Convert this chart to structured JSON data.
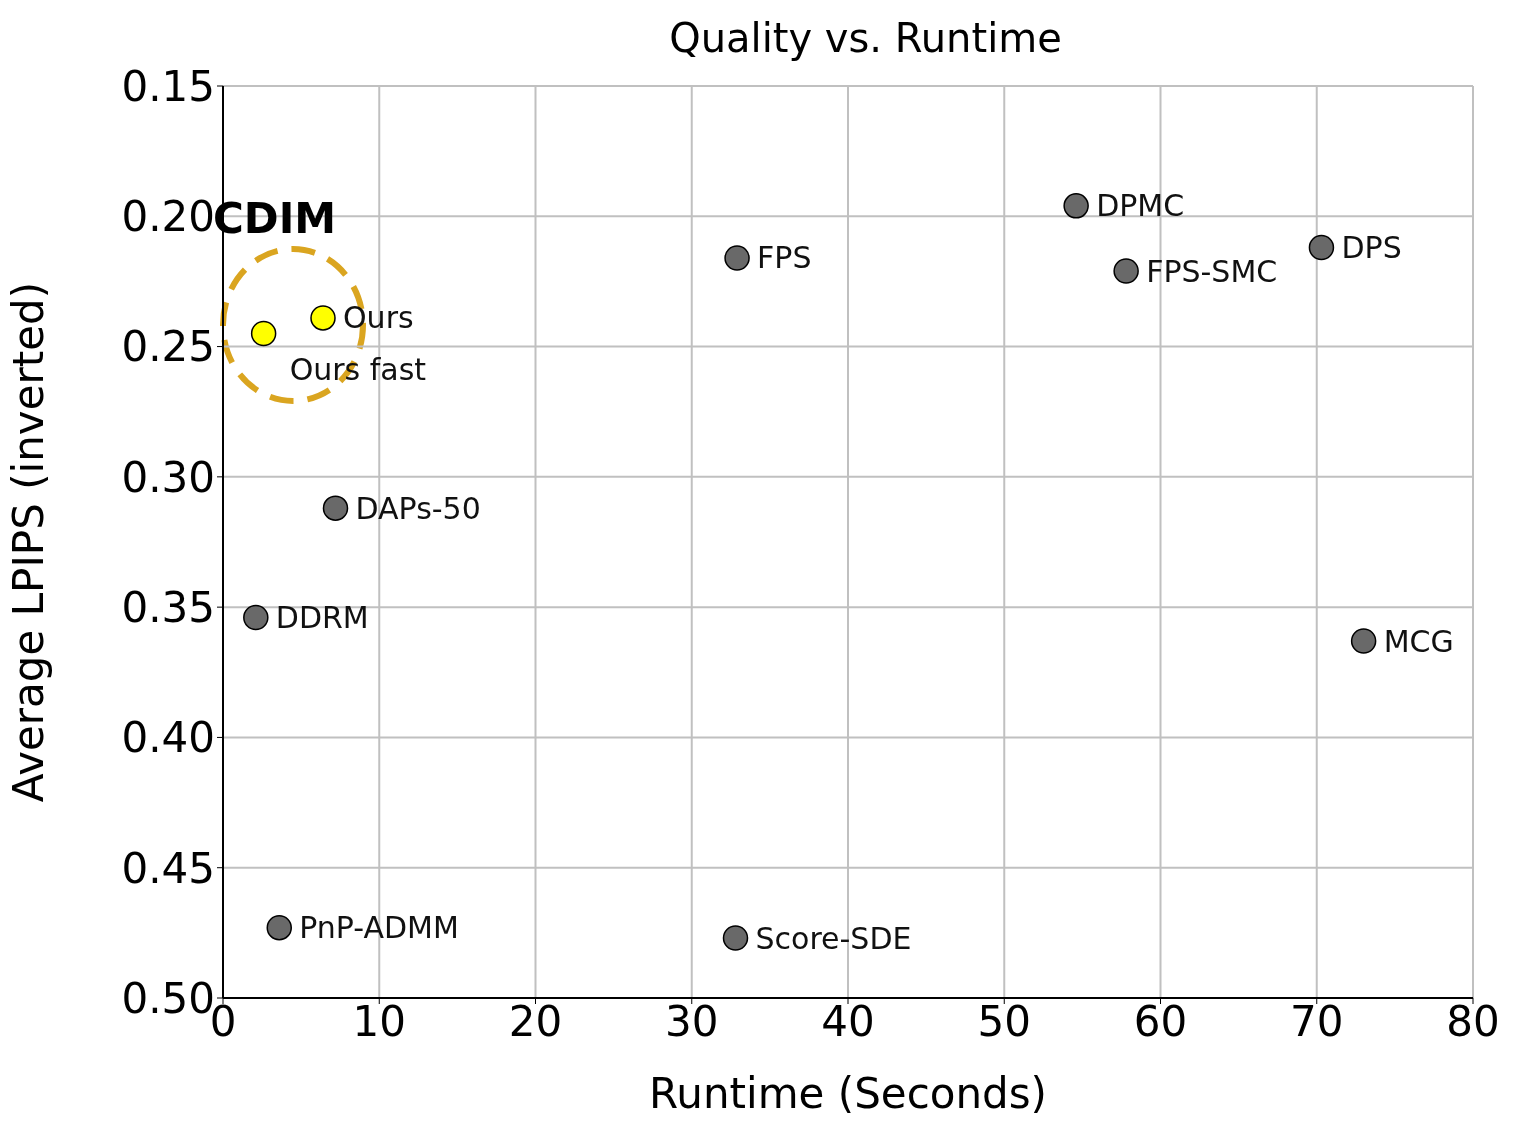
{
  "chart_data": {
    "type": "scatter",
    "title": "Quality vs. Runtime",
    "xlabel": "Runtime (Seconds)",
    "ylabel": "Average LPIPS (inverted)",
    "xlim": [
      0,
      80
    ],
    "xticks": [
      0,
      10,
      20,
      30,
      40,
      50,
      60,
      70,
      80
    ],
    "ylim": [
      0.5,
      0.15
    ],
    "yticks": [
      0.15,
      {
        "value": 0.2,
        "label": "0.20"
      },
      0.25,
      {
        "value": 0.3,
        "label": "0.30"
      },
      0.35,
      {
        "value": 0.4,
        "label": "0.40"
      },
      0.45,
      {
        "value": 0.5,
        "label": "0.50"
      }
    ],
    "grid": true,
    "legend": false,
    "marker": "circle",
    "annotations": [
      "CDIM"
    ],
    "series": [
      {
        "name": "Ours fast",
        "color": "#ffff00",
        "x": [
          2.6
        ],
        "values": [
          0.245
        ]
      },
      {
        "name": "Ours",
        "color": "#ffff00",
        "x": [
          6.4
        ],
        "values": [
          0.239
        ]
      },
      {
        "name": "FPS",
        "color": "#696969",
        "x": [
          32.9
        ],
        "values": [
          0.216
        ]
      },
      {
        "name": "DPMC",
        "color": "#696969",
        "x": [
          54.6
        ],
        "values": [
          0.196
        ]
      },
      {
        "name": "FPS-SMC",
        "color": "#696969",
        "x": [
          57.8
        ],
        "values": [
          0.221
        ]
      },
      {
        "name": "DPS",
        "color": "#696969",
        "x": [
          70.3
        ],
        "values": [
          0.212
        ]
      },
      {
        "name": "DAPs-50",
        "color": "#696969",
        "x": [
          7.2
        ],
        "values": [
          0.312
        ]
      },
      {
        "name": "DDRM",
        "color": "#696969",
        "x": [
          2.1
        ],
        "values": [
          0.354
        ]
      },
      {
        "name": "MCG",
        "color": "#696969",
        "x": [
          73.0
        ],
        "values": [
          0.363
        ]
      },
      {
        "name": "PnP-ADMM",
        "color": "#696969",
        "x": [
          3.6
        ],
        "values": [
          0.473
        ]
      },
      {
        "name": "Score-SDE",
        "color": "#696969",
        "x": [
          32.8
        ],
        "values": [
          0.477
        ]
      }
    ]
  }
}
